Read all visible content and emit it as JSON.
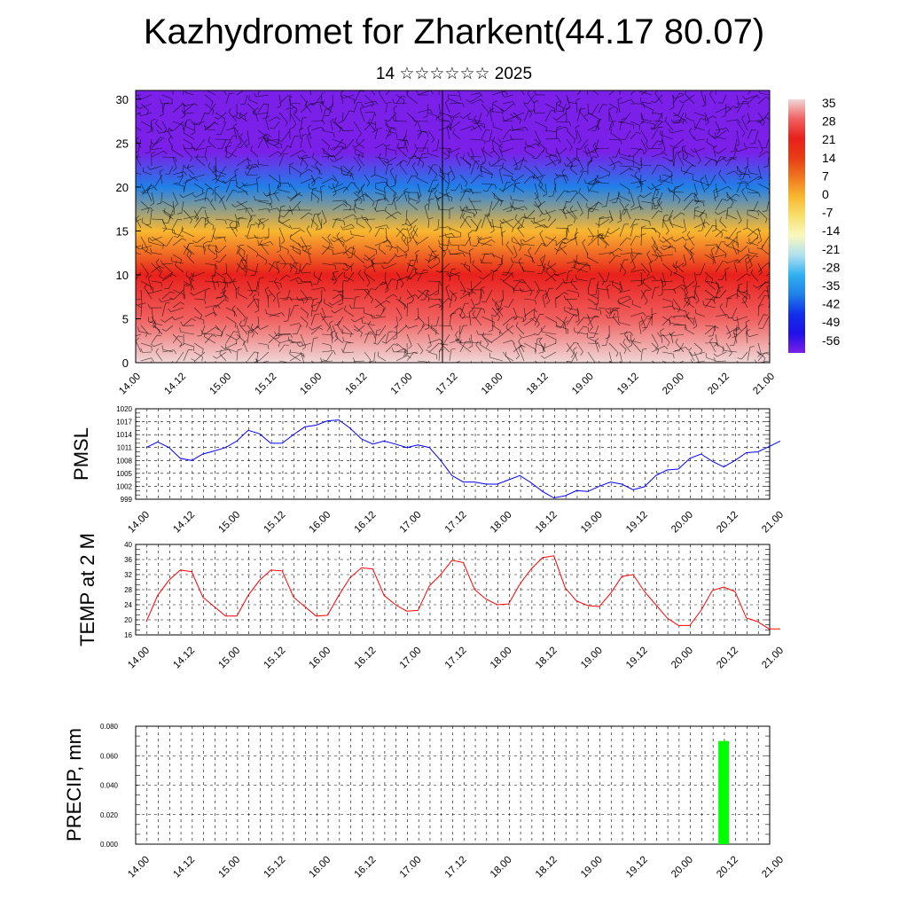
{
  "title": "Kazhydromet for Zharkent(44.17 80.07)",
  "subtitle": "14 ☆☆☆☆☆☆ 2025",
  "time_labels": [
    "14.00",
    "14.12",
    "15.00",
    "15.12",
    "16.00",
    "16.12",
    "17.00",
    "17.12",
    "18.00",
    "18.12",
    "19.00",
    "19.12",
    "20.00",
    "20.12",
    "21.00"
  ],
  "colors": {
    "pmsl": "#0000ff",
    "temp": "#ff0000",
    "precip": "#00ff00"
  },
  "chart_data": [
    {
      "type": "heatmap",
      "name": "cross_section",
      "title": "",
      "xlabel": "",
      "ylabel": "",
      "x": [
        "14.00",
        "14.12",
        "15.00",
        "15.12",
        "16.00",
        "16.12",
        "17.00",
        "17.12",
        "18.00",
        "18.12",
        "19.00",
        "19.12",
        "20.00",
        "20.12",
        "21.00"
      ],
      "y_ticks": [
        0,
        5,
        10,
        15,
        20,
        25,
        30
      ],
      "ylim": [
        0,
        31
      ],
      "colorbar_labels": [
        "35",
        "28",
        "21",
        "14",
        "7",
        "0",
        "-7",
        "-14",
        "-21",
        "-28",
        "-35",
        "-42",
        "-49",
        "-56"
      ],
      "colorbar_colors": [
        "#f0d8d8",
        "#f06060",
        "#e8201c",
        "#e83c14",
        "#f07820",
        "#f8b830",
        "#f8e070",
        "#f8f8c0",
        "#b0e0f0",
        "#30b0f0",
        "#2080e8",
        "#1030e8",
        "#2010e8",
        "#7a20e8"
      ],
      "temperature_profile": [
        {
          "height": 0,
          "value": 33
        },
        {
          "height": 5,
          "value": 28
        },
        {
          "height": 10,
          "value": 18
        },
        {
          "height": 15,
          "value": 0
        },
        {
          "height": 20,
          "value": -32
        },
        {
          "height": 24,
          "value": -56
        },
        {
          "height": 31,
          "value": -60
        }
      ],
      "wind_barbs": true
    },
    {
      "type": "line",
      "name": "pmsl",
      "ylabel": "PMSL",
      "y_ticks": [
        "1020",
        "1017",
        "1014",
        "1011",
        "1008",
        "1005",
        "1002",
        "999"
      ],
      "ylim": [
        999,
        1020
      ],
      "x": [
        0,
        3,
        6,
        9,
        12,
        15,
        18,
        21,
        24,
        27,
        30,
        33,
        36,
        39,
        42,
        45,
        48,
        51,
        54,
        57,
        60,
        63,
        66,
        69,
        72,
        75,
        78,
        81,
        84,
        87,
        90,
        93,
        96,
        99,
        102,
        105,
        108,
        111,
        114,
        117,
        120,
        123,
        126,
        129,
        132,
        135,
        138,
        141,
        144,
        147,
        150,
        153,
        156,
        159,
        162,
        165,
        168
      ],
      "series": [
        {
          "values": [
            1011,
            1012.3,
            1011,
            1008.5,
            1008,
            1009.5,
            1010.2,
            1011,
            1012.5,
            1015,
            1014.2,
            1012,
            1012,
            1014,
            1015.8,
            1016.2,
            1017.2,
            1017.4,
            1015.5,
            1013,
            1011.8,
            1012.5,
            1011.8,
            1011,
            1011.6,
            1011,
            1008,
            1004.5,
            1003,
            1003,
            1002.5,
            1002.5,
            1003.5,
            1004.5,
            1002.8,
            1000.8,
            999.3,
            999.8,
            1001,
            1000.8,
            1002,
            1003,
            1002.5,
            1001.2,
            1001.9,
            1004.5,
            1005.8,
            1006,
            1008.5,
            1009.5,
            1007.8,
            1006.5,
            1008,
            1009.8,
            1010,
            1011.2,
            1012.5
          ]
        }
      ]
    },
    {
      "type": "line",
      "name": "temp_2m",
      "ylabel": "TEMP at 2 M",
      "y_ticks": [
        "40",
        "36",
        "32",
        "28",
        "24",
        "20",
        "16"
      ],
      "ylim": [
        16,
        40
      ],
      "x": [
        0,
        3,
        6,
        9,
        12,
        15,
        18,
        21,
        24,
        27,
        30,
        33,
        36,
        39,
        42,
        45,
        48,
        51,
        54,
        57,
        60,
        63,
        66,
        69,
        72,
        75,
        78,
        81,
        84,
        87,
        90,
        93,
        96,
        99,
        102,
        105,
        108,
        111,
        114,
        117,
        120,
        123,
        126,
        129,
        132,
        135,
        138,
        141,
        144,
        147,
        150,
        153,
        156,
        159,
        162,
        165,
        168
      ],
      "series": [
        {
          "values": [
            19.5,
            26.5,
            30.5,
            33.2,
            32.8,
            26,
            23.5,
            21,
            21,
            26.5,
            30.5,
            33.2,
            33,
            26,
            23.5,
            21,
            21.2,
            26.5,
            31.2,
            33.8,
            33.5,
            26.5,
            24,
            22.3,
            22.5,
            29,
            32,
            35.8,
            35.2,
            28,
            25.5,
            24,
            24.2,
            29.5,
            33.5,
            36.5,
            37,
            28.5,
            25,
            23.8,
            23.5,
            27,
            31.5,
            32,
            27.5,
            24,
            20.5,
            18.5,
            18.5,
            22.5,
            27.8,
            28.7,
            27.5,
            20.5,
            19.5,
            17.6,
            17.6
          ]
        }
      ]
    },
    {
      "type": "bar",
      "name": "precip",
      "ylabel": "PRECIP, mm",
      "y_ticks": [
        "0.080",
        "0.060",
        "0.040",
        "0.020",
        "0.000"
      ],
      "ylim": [
        0,
        0.08
      ],
      "bars": [
        {
          "x_hours": 153,
          "value": 0.07
        }
      ]
    }
  ]
}
